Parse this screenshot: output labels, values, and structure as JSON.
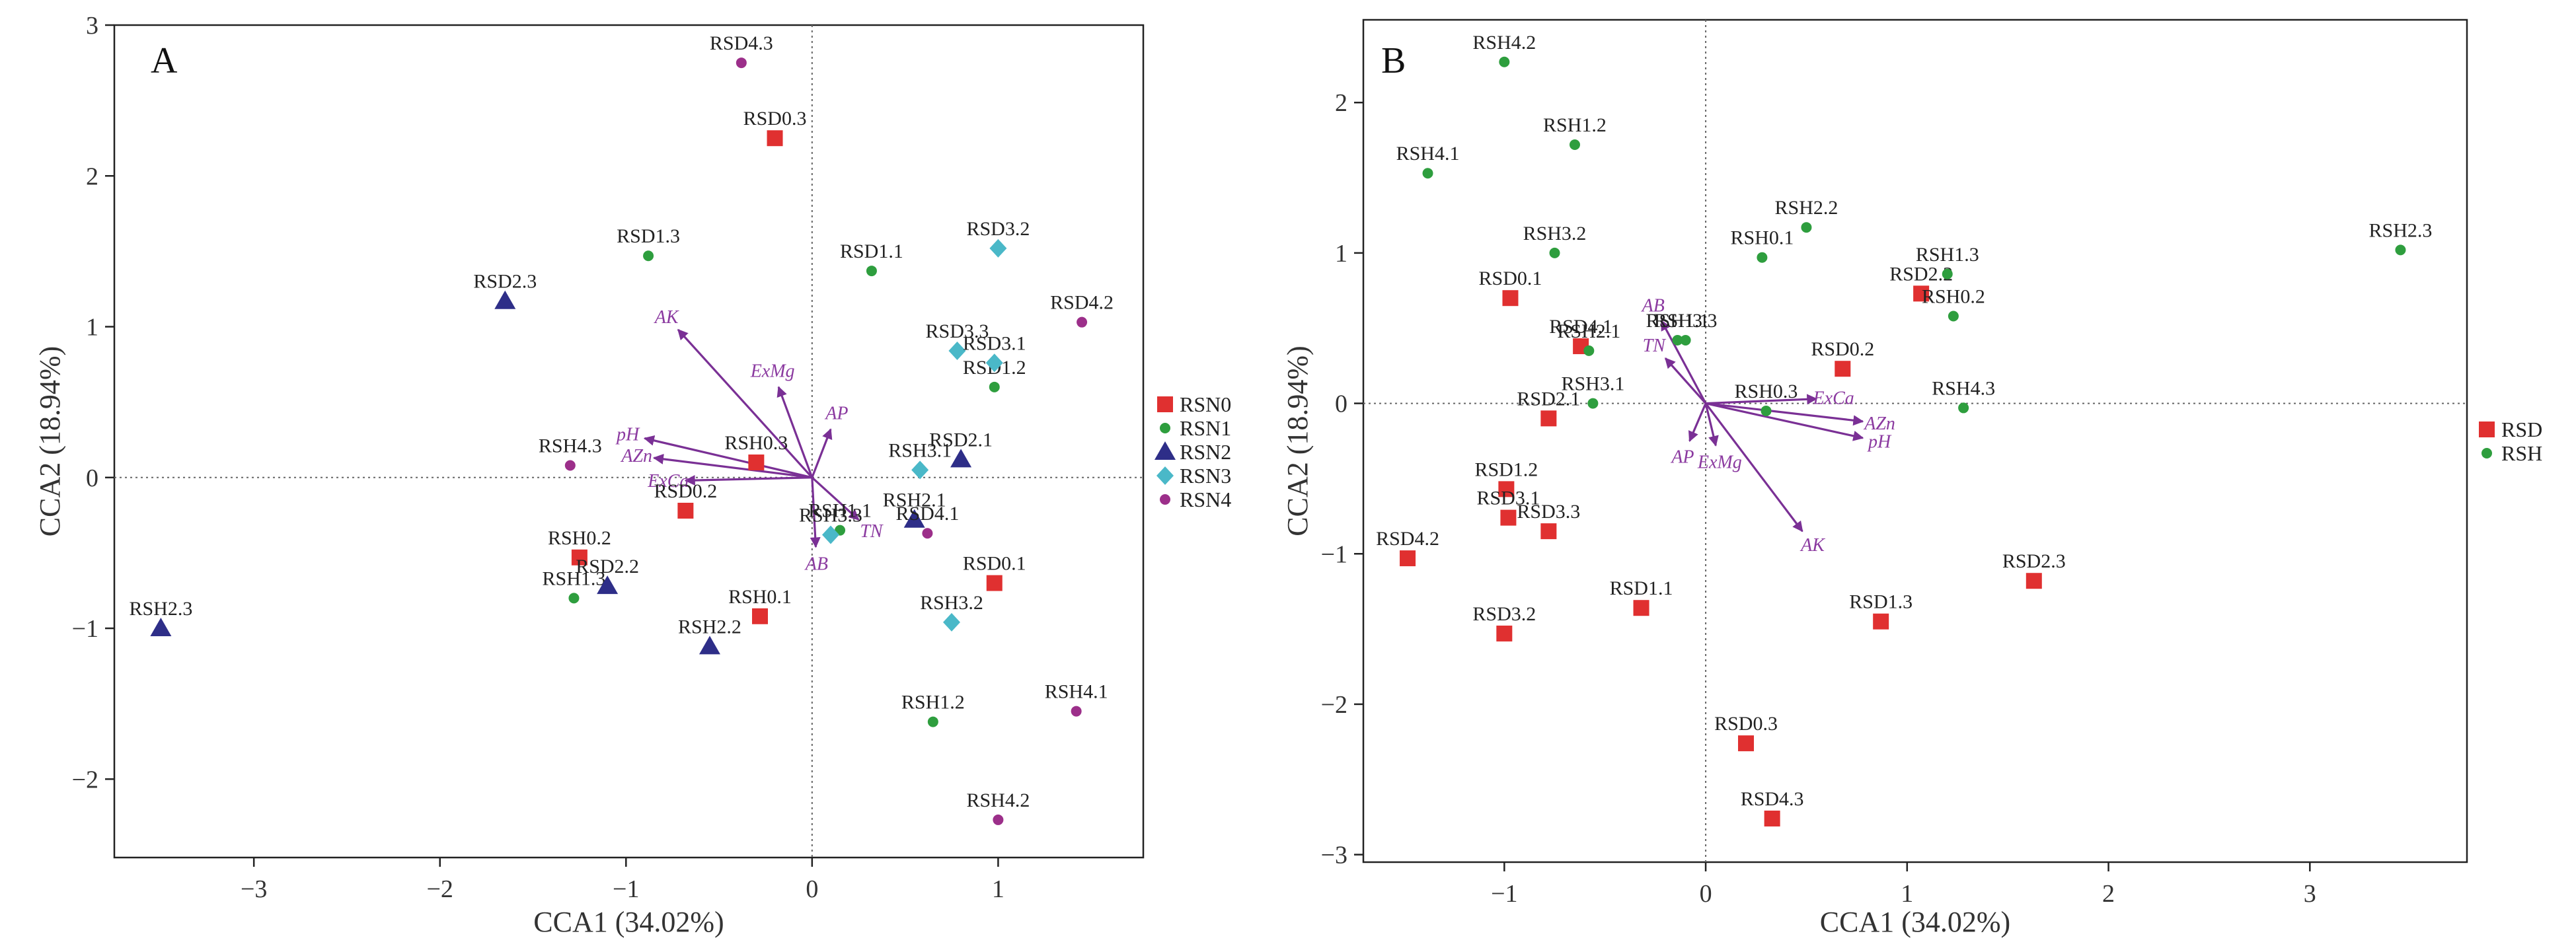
{
  "chart_data": [
    {
      "type": "scatter",
      "panel_label": "A",
      "xlabel": "CCA1 (34.02%)",
      "ylabel": "CCA2 (18.94%)",
      "xlim": [
        -3.75,
        1.78
      ],
      "ylim": [
        -2.52,
        3.0
      ],
      "xticks": [
        -3,
        -2,
        -1,
        0,
        1
      ],
      "yticks": [
        -2,
        -1,
        0,
        1,
        2,
        3
      ],
      "xtick_labels": [
        "−3",
        "−2",
        "−1",
        "0",
        "1"
      ],
      "ytick_labels": [
        "−2",
        "−1",
        "0",
        "1",
        "2",
        "3"
      ],
      "reference_lines": "dotted at x=0 and y=0",
      "legend_placement": "right",
      "series": [
        {
          "name": "RSN0",
          "marker": "square",
          "color": "#e03030",
          "points": [
            {
              "label": "RSD0.3",
              "x": -0.2,
              "y": 2.25
            },
            {
              "label": "RSH0.3",
              "x": -0.3,
              "y": 0.1
            },
            {
              "label": "RSD0.2",
              "x": -0.68,
              "y": -0.22
            },
            {
              "label": "RSH0.2",
              "x": -1.25,
              "y": -0.53
            },
            {
              "label": "RSH0.1",
              "x": -0.28,
              "y": -0.92
            },
            {
              "label": "RSD0.1",
              "x": 0.98,
              "y": -0.7
            }
          ]
        },
        {
          "name": "RSN1",
          "marker": "circle",
          "color": "#2e9e3e",
          "points": [
            {
              "label": "RSD1.3",
              "x": -0.88,
              "y": 1.47
            },
            {
              "label": "RSD1.1",
              "x": 0.32,
              "y": 1.37
            },
            {
              "label": "RSD1.2",
              "x": 0.98,
              "y": 0.6
            },
            {
              "label": "RSH1.3",
              "x": -1.28,
              "y": -0.8
            },
            {
              "label": "RSH1.1",
              "x": 0.15,
              "y": -0.35
            },
            {
              "label": "RSH1.2",
              "x": 0.65,
              "y": -1.62
            }
          ]
        },
        {
          "name": "RSN2",
          "marker": "triangle",
          "color": "#2e2e88",
          "points": [
            {
              "label": "RSD2.3",
              "x": -1.65,
              "y": 1.17
            },
            {
              "label": "RSD2.2",
              "x": -1.1,
              "y": -0.72
            },
            {
              "label": "RSH2.2",
              "x": -0.55,
              "y": -1.12
            },
            {
              "label": "RSH2.3",
              "x": -3.5,
              "y": -1.0
            },
            {
              "label": "RSD2.1",
              "x": 0.8,
              "y": 0.12
            },
            {
              "label": "RSH2.1",
              "x": 0.55,
              "y": -0.28
            }
          ]
        },
        {
          "name": "RSN3",
          "marker": "diamond",
          "color": "#4ab8c8",
          "points": [
            {
              "label": "RSD3.2",
              "x": 1.0,
              "y": 1.52
            },
            {
              "label": "RSD3.3",
              "x": 0.78,
              "y": 0.84
            },
            {
              "label": "RSD3.1",
              "x": 0.98,
              "y": 0.76
            },
            {
              "label": "RSH3.1",
              "x": 0.58,
              "y": 0.05
            },
            {
              "label": "RSH3.3",
              "x": 0.1,
              "y": -0.38
            },
            {
              "label": "RSH3.2",
              "x": 0.75,
              "y": -0.96
            }
          ]
        },
        {
          "name": "RSN4",
          "marker": "circle",
          "color": "#9c2f8a",
          "points": [
            {
              "label": "RSD4.3",
              "x": -0.38,
              "y": 2.75
            },
            {
              "label": "RSD4.2",
              "x": 1.45,
              "y": 1.03
            },
            {
              "label": "RSH4.3",
              "x": -1.3,
              "y": 0.08
            },
            {
              "label": "RSD4.1",
              "x": 0.62,
              "y": -0.37
            },
            {
              "label": "RSH4.1",
              "x": 1.42,
              "y": -1.55
            },
            {
              "label": "RSH4.2",
              "x": 1.0,
              "y": -2.27
            }
          ]
        }
      ],
      "vectors": [
        {
          "label": "AK",
          "x": -0.72,
          "y": 0.98
        },
        {
          "label": "ExMg",
          "x": -0.18,
          "y": 0.6
        },
        {
          "label": "AP",
          "x": 0.1,
          "y": 0.32
        },
        {
          "label": "pH",
          "x": -0.9,
          "y": 0.26
        },
        {
          "label": "AZn",
          "x": -0.85,
          "y": 0.13
        },
        {
          "label": "ExCa",
          "x": -0.68,
          "y": -0.02
        },
        {
          "label": "TN",
          "x": 0.25,
          "y": -0.28
        },
        {
          "label": "AB",
          "x": 0.02,
          "y": -0.46
        }
      ]
    },
    {
      "type": "scatter",
      "panel_label": "B",
      "xlabel": "CCA1 (34.02%)",
      "ylabel": "CCA2 (18.94%)",
      "xlim": [
        -1.7,
        3.78
      ],
      "ylim": [
        -3.05,
        2.55
      ],
      "xticks": [
        -1,
        0,
        1,
        2,
        3
      ],
      "yticks": [
        -3,
        -2,
        -1,
        0,
        1,
        2
      ],
      "xtick_labels": [
        "−1",
        "0",
        "1",
        "2",
        "3"
      ],
      "ytick_labels": [
        "−3",
        "−2",
        "−1",
        "0",
        "1",
        "2"
      ],
      "reference_lines": "dotted at x=0 and y=0",
      "legend_placement": "right",
      "series": [
        {
          "name": "RSD",
          "marker": "square",
          "color": "#e03030",
          "points": [
            {
              "label": "RSD0.1",
              "x": -0.97,
              "y": 0.7
            },
            {
              "label": "RSD4.1",
              "x": -0.62,
              "y": 0.38
            },
            {
              "label": "RSD2.1",
              "x": -0.78,
              "y": -0.1
            },
            {
              "label": "RSD1.2",
              "x": -0.99,
              "y": -0.57
            },
            {
              "label": "RSD3.1",
              "x": -0.98,
              "y": -0.76
            },
            {
              "label": "RSD3.3",
              "x": -0.78,
              "y": -0.85
            },
            {
              "label": "RSD4.2",
              "x": -1.48,
              "y": -1.03
            },
            {
              "label": "RSD1.1",
              "x": -0.32,
              "y": -1.36
            },
            {
              "label": "RSD3.2",
              "x": -1.0,
              "y": -1.53
            },
            {
              "label": "RSD0.2",
              "x": 0.68,
              "y": 0.23
            },
            {
              "label": "RSD2.2",
              "x": 1.07,
              "y": 0.73
            },
            {
              "label": "RSD2.3",
              "x": 1.63,
              "y": -1.18
            },
            {
              "label": "RSD1.3",
              "x": 0.87,
              "y": -1.45
            },
            {
              "label": "RSD0.3",
              "x": 0.2,
              "y": -2.26
            },
            {
              "label": "RSD4.3",
              "x": 0.33,
              "y": -2.76
            }
          ]
        },
        {
          "name": "RSH",
          "marker": "circle",
          "color": "#2e9e3e",
          "points": [
            {
              "label": "RSH4.2",
              "x": -1.0,
              "y": 2.27
            },
            {
              "label": "RSH1.2",
              "x": -0.65,
              "y": 1.72
            },
            {
              "label": "RSH4.1",
              "x": -1.38,
              "y": 1.53
            },
            {
              "label": "RSH3.2",
              "x": -0.75,
              "y": 1.0
            },
            {
              "label": "RSH2.2",
              "x": 0.5,
              "y": 1.17
            },
            {
              "label": "RSH0.1",
              "x": 0.28,
              "y": 0.97
            },
            {
              "label": "RSH1.3",
              "x": 1.2,
              "y": 0.86
            },
            {
              "label": "RSH0.2",
              "x": 1.23,
              "y": 0.58
            },
            {
              "label": "RSH2.3",
              "x": 3.45,
              "y": 1.02
            },
            {
              "label": "RSH2.1",
              "x": -0.58,
              "y": 0.35
            },
            {
              "label": "RSH1.1",
              "x": -0.14,
              "y": 0.42
            },
            {
              "label": "RSH3.3",
              "x": -0.1,
              "y": 0.42
            },
            {
              "label": "RSH3.1",
              "x": -0.56,
              "y": 0.0
            },
            {
              "label": "RSH0.3",
              "x": 0.3,
              "y": -0.05
            },
            {
              "label": "RSH4.3",
              "x": 1.28,
              "y": -0.03
            }
          ]
        }
      ],
      "vectors": [
        {
          "label": "AB",
          "x": -0.22,
          "y": 0.55
        },
        {
          "label": "TN",
          "x": -0.2,
          "y": 0.3
        },
        {
          "label": "ExCa",
          "x": 0.55,
          "y": 0.03
        },
        {
          "label": "AZn",
          "x": 0.78,
          "y": -0.12
        },
        {
          "label": "pH",
          "x": 0.78,
          "y": -0.23
        },
        {
          "label": "AP",
          "x": -0.08,
          "y": -0.25
        },
        {
          "label": "ExMg",
          "x": 0.05,
          "y": -0.28
        },
        {
          "label": "AK",
          "x": 0.48,
          "y": -0.85
        }
      ]
    }
  ]
}
